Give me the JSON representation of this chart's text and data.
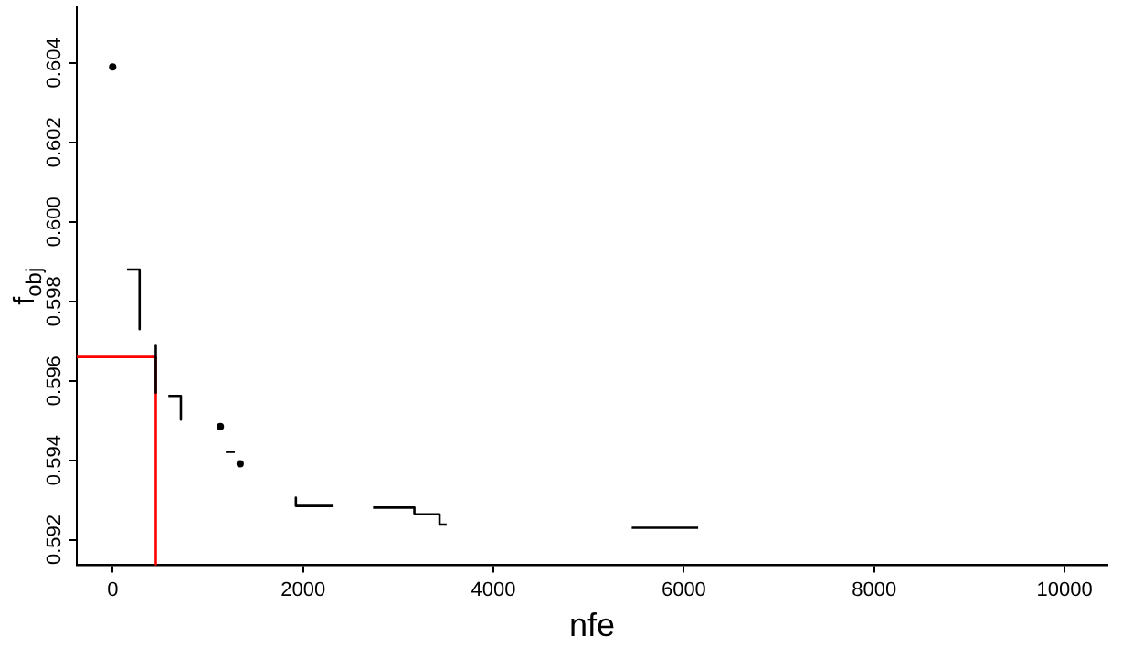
{
  "chart_data": {
    "type": "line",
    "xlabel": "nfe",
    "ylabel": "f$_{obj}$",
    "xlim": [
      -377,
      10450
    ],
    "ylim": [
      0.59136,
      0.6054
    ],
    "xticks": [
      0,
      2000,
      4000,
      6000,
      8000,
      10000
    ],
    "yticks": [
      0.592,
      0.594,
      0.596,
      0.598,
      {
        "value": 0.6,
        "label": "0.600"
      },
      0.602,
      0.604
    ],
    "grid": false,
    "legend": false,
    "line_style": "solid",
    "series": [
      {
        "type": "scatter",
        "marker": "circle",
        "color": "#000000",
        "x": [
          0,
          1132,
          1340
        ],
        "values": [
          0.6039,
          0.59485,
          0.59391
        ]
      },
      {
        "color": "#000000",
        "x": [
          151,
          283,
          283
        ],
        "values": [
          0.5988,
          0.5988,
          0.5973
        ]
      },
      {
        "color": "#000000",
        "x": [
          453,
          453
        ],
        "values": [
          0.5969,
          0.5957
        ]
      },
      {
        "color": "#000000",
        "x": [
          585,
          717,
          717
        ],
        "values": [
          0.59562,
          0.59562,
          0.59502
        ]
      },
      {
        "color": "#000000",
        "x": [
          1189,
          1283
        ],
        "values": [
          0.59421,
          0.59421
        ]
      },
      {
        "color": "#000000",
        "x": [
          1925,
          1925,
          2321
        ],
        "values": [
          0.59306,
          0.59285,
          0.59285
        ]
      },
      {
        "color": "#000000",
        "x": [
          2736,
          3170,
          3170,
          3434,
          3434,
          3509
        ],
        "values": [
          0.59281,
          0.59281,
          0.59264,
          0.59264,
          0.59238,
          0.59238
        ]
      },
      {
        "color": "#000000",
        "x": [
          5453,
          6151
        ],
        "values": [
          0.5923,
          0.5923
        ]
      },
      {
        "color": "#ff0000",
        "x": [
          -377,
          453,
          453
        ],
        "values": [
          0.5966,
          0.5966,
          0.59136
        ]
      }
    ]
  }
}
